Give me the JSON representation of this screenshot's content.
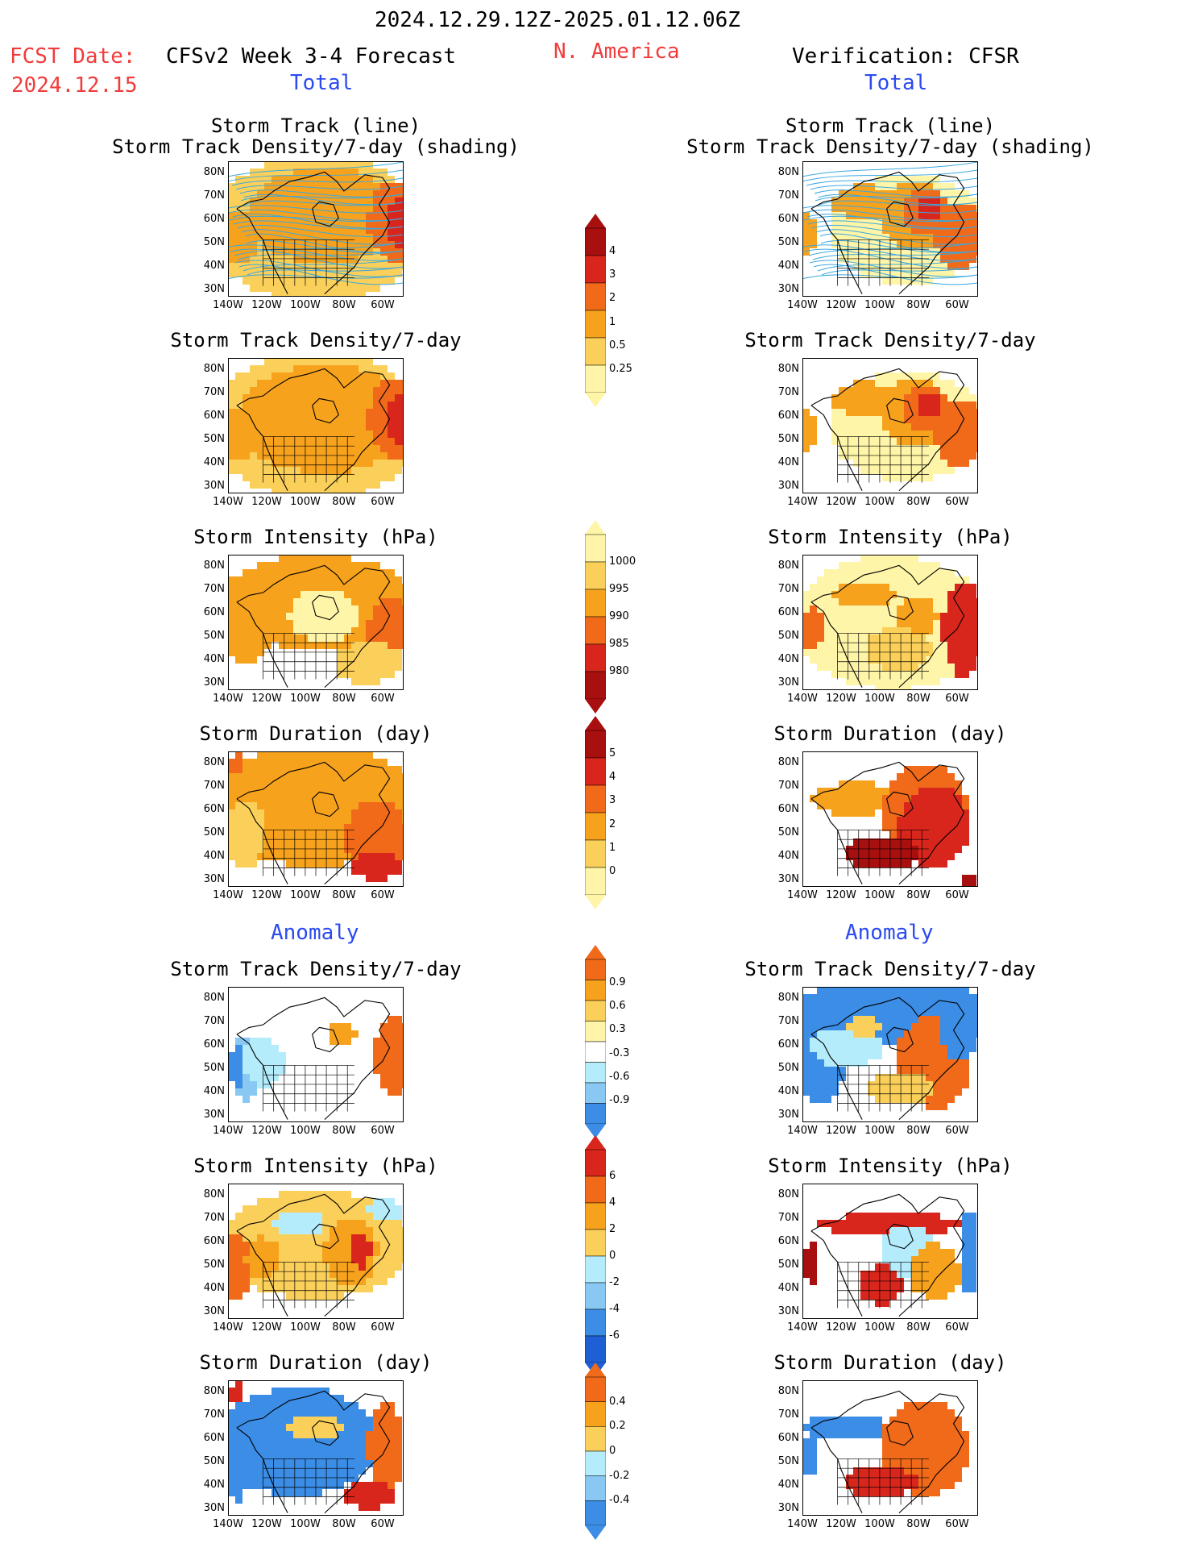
{
  "header": {
    "period": "2024.12.29.12Z-2025.01.12.06Z",
    "fcst_label": "FCST Date:",
    "fcst_date": "2024.12.15",
    "left_title": "CFSv2 Week 3-4 Forecast",
    "region": "N. America",
    "right_title": "Verification: CFSR",
    "total_left": "Total",
    "total_right": "Total",
    "anom_left": "Anomaly",
    "anom_right": "Anomaly"
  },
  "panel_titles": {
    "track_line": "Storm Track (line)",
    "track_shading": "Storm Track Density/7-day (shading)",
    "density": "Storm Track Density/7-day",
    "intensity": "Storm Intensity (hPa)",
    "duration": "Storm Duration (day)"
  },
  "colors": {
    "pale_yellow": "#fff5a8",
    "light_orange": "#fbd05a",
    "orange": "#f7a21d",
    "dark_orange": "#f06a1a",
    "red": "#d9261c",
    "dark_red": "#a80f0f",
    "pale_blue": "#b4ecfb",
    "light_blue": "#88c8f3",
    "blue": "#3b8de6",
    "dark_blue": "#1f5fd6",
    "storm_track_line": "#3aa8e0"
  },
  "chart_data": [
    {
      "type": "heatmap",
      "id": "fc_track",
      "title": "Storm Track (line) / Storm Track Density/7-day (shading)",
      "source": "CFSv2 Week 3-4 Forecast",
      "kind": "Total",
      "lat_ticks": [
        "80N",
        "70N",
        "60N",
        "50N",
        "40N",
        "30N"
      ],
      "lon_ticks": [
        "140W",
        "120W",
        "100W",
        "80W",
        "60W"
      ]
    },
    {
      "type": "heatmap",
      "id": "ob_track",
      "title": "Storm Track (line) / Storm Track Density/7-day (shading)",
      "source": "Verification: CFSR",
      "kind": "Total",
      "lat_ticks": [
        "80N",
        "70N",
        "60N",
        "50N",
        "40N",
        "30N"
      ],
      "lon_ticks": [
        "140W",
        "120W",
        "100W",
        "80W",
        "60W"
      ]
    },
    {
      "type": "heatmap",
      "id": "fc_density",
      "title": "Storm Track Density/7-day",
      "kind": "Total"
    },
    {
      "type": "heatmap",
      "id": "ob_density",
      "title": "Storm Track Density/7-day",
      "kind": "Total"
    },
    {
      "type": "heatmap",
      "id": "fc_intensity",
      "title": "Storm Intensity (hPa)",
      "kind": "Total"
    },
    {
      "type": "heatmap",
      "id": "ob_intensity",
      "title": "Storm Intensity (hPa)",
      "kind": "Total"
    },
    {
      "type": "heatmap",
      "id": "fc_duration",
      "title": "Storm Duration (day)",
      "kind": "Total"
    },
    {
      "type": "heatmap",
      "id": "ob_duration",
      "title": "Storm Duration (day)",
      "kind": "Total"
    },
    {
      "type": "heatmap",
      "id": "fc_density_anom",
      "title": "Storm Track Density/7-day",
      "kind": "Anomaly"
    },
    {
      "type": "heatmap",
      "id": "ob_density_anom",
      "title": "Storm Track Density/7-day",
      "kind": "Anomaly"
    },
    {
      "type": "heatmap",
      "id": "fc_intensity_anom",
      "title": "Storm Intensity (hPa)",
      "kind": "Anomaly"
    },
    {
      "type": "heatmap",
      "id": "ob_intensity_anom",
      "title": "Storm Intensity (hPa)",
      "kind": "Anomaly"
    },
    {
      "type": "heatmap",
      "id": "fc_duration_anom",
      "title": "Storm Duration (day)",
      "kind": "Anomaly"
    },
    {
      "type": "heatmap",
      "id": "ob_duration_anom",
      "title": "Storm Duration (day)",
      "kind": "Anomaly"
    }
  ],
  "colorbars": [
    {
      "id": "density_total",
      "labels": [
        "4",
        "3",
        "2",
        "1",
        "0.5",
        "0.25"
      ],
      "colors": [
        "#a80f0f",
        "#d9261c",
        "#f06a1a",
        "#f7a21d",
        "#fbd05a",
        "#fff5a8"
      ]
    },
    {
      "id": "intensity_total",
      "labels": [
        "1000",
        "995",
        "990",
        "985",
        "980"
      ],
      "colors": [
        "#fff5a8",
        "#fbd05a",
        "#f7a21d",
        "#f06a1a",
        "#d9261c",
        "#a80f0f"
      ]
    },
    {
      "id": "duration_total",
      "labels": [
        "5",
        "4",
        "3",
        "2",
        "1",
        "0"
      ],
      "colors": [
        "#a80f0f",
        "#d9261c",
        "#f06a1a",
        "#f7a21d",
        "#fbd05a",
        "#fff5a8"
      ]
    },
    {
      "id": "density_anom",
      "labels": [
        "0.9",
        "0.6",
        "0.3",
        "-0.3",
        "-0.6",
        "-0.9"
      ],
      "colors": [
        "#f06a1a",
        "#f7a21d",
        "#fbd05a",
        "#fff5a8",
        "#ffffff",
        "#b4ecfb",
        "#88c8f3",
        "#3b8de6"
      ]
    },
    {
      "id": "intensity_anom",
      "labels": [
        "6",
        "4",
        "2",
        "0",
        "-2",
        "-4",
        "-6"
      ],
      "colors": [
        "#d9261c",
        "#f06a1a",
        "#f7a21d",
        "#fbd05a",
        "#b4ecfb",
        "#88c8f3",
        "#3b8de6",
        "#1f5fd6"
      ]
    },
    {
      "id": "duration_anom",
      "labels": [
        "0.4",
        "0.2",
        "0",
        "-0.2",
        "-0.4"
      ],
      "colors": [
        "#f06a1a",
        "#f7a21d",
        "#fbd05a",
        "#b4ecfb",
        "#88c8f3",
        "#3b8de6"
      ]
    }
  ],
  "axes": {
    "lat_ticks": [
      "80N",
      "70N",
      "60N",
      "50N",
      "40N",
      "30N"
    ],
    "lon_ticks": [
      "140W",
      "120W",
      "100W",
      "80W",
      "60W"
    ]
  }
}
